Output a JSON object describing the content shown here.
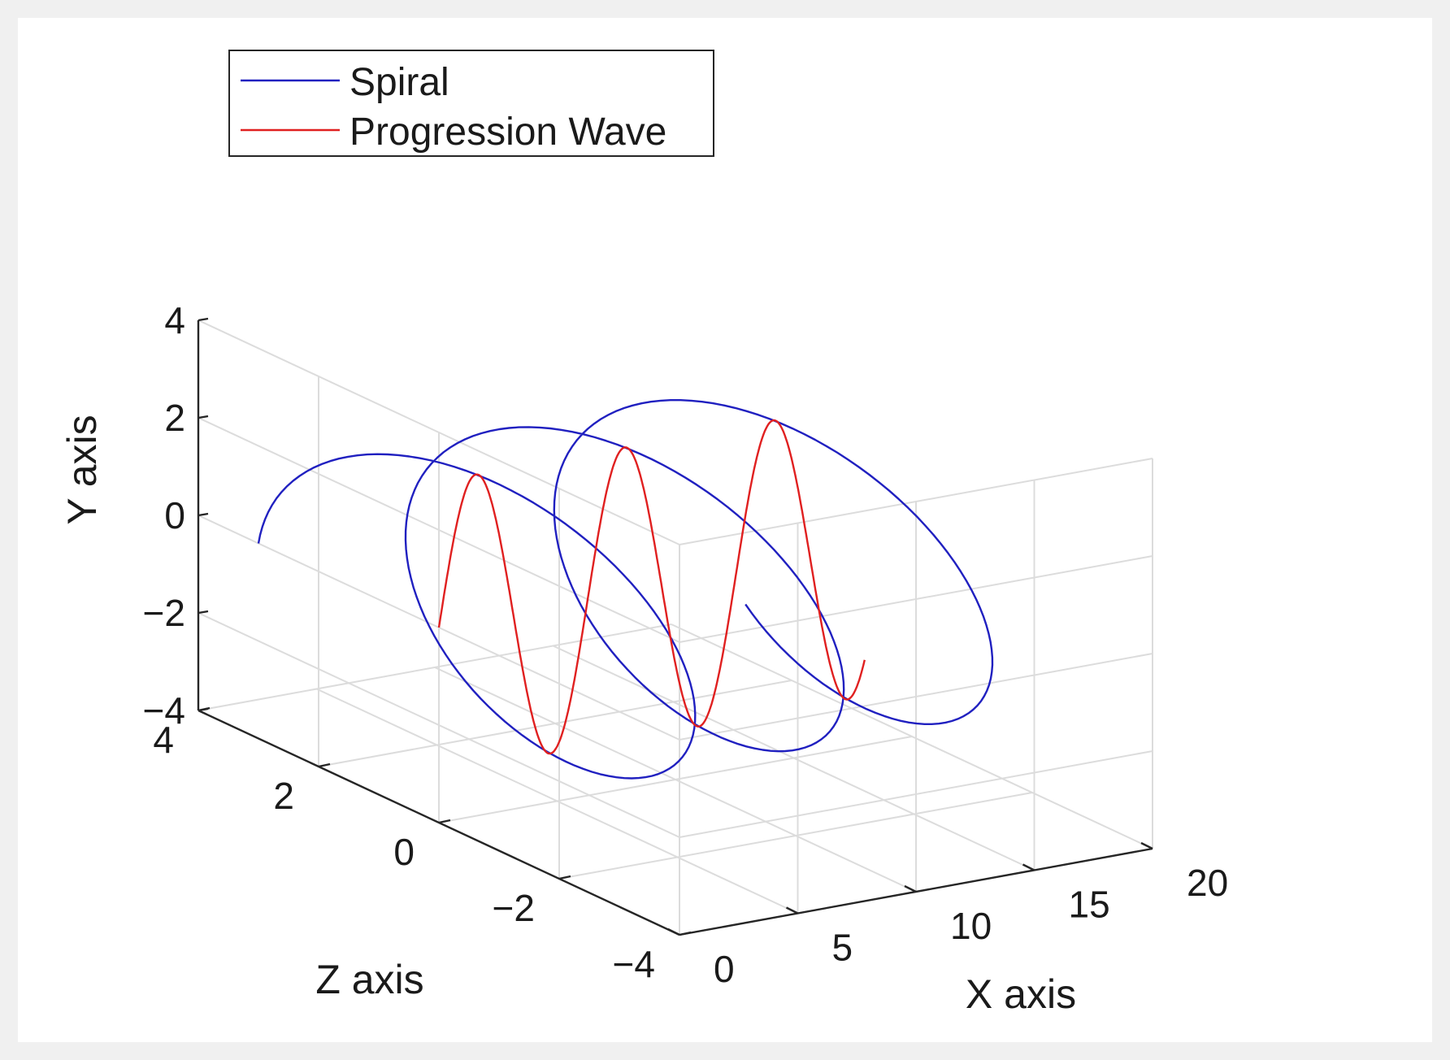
{
  "chart_data": {
    "type": "line",
    "subtype": "3d-line",
    "title": "",
    "xlabel": "X axis",
    "ylabel": "Y axis",
    "zlabel": "Z axis",
    "xlim": [
      0,
      20
    ],
    "ylim": [
      -4,
      4
    ],
    "zlim": [
      -4,
      4
    ],
    "x_ticks": [
      "0",
      "5",
      "10",
      "15",
      "20"
    ],
    "y_ticks": [
      "−4",
      "−2",
      "0",
      "2",
      "4"
    ],
    "z_ticks": [
      "−4",
      "−2",
      "0",
      "2",
      "4"
    ],
    "grid": true,
    "legend_position": "top-left",
    "colors": {
      "background": "#f0f0f0",
      "axes": "#ffffff",
      "grid": "#dcdcdc",
      "axis_line": "#262626"
    },
    "series": [
      {
        "name": "Spiral",
        "color": "#2020c0",
        "x_range": [
          0,
          18
        ],
        "y": "3*sin(x)",
        "z": "3*cos(x)",
        "points": 320
      },
      {
        "name": "Progression Wave",
        "color": "#e02020",
        "x_range": [
          0,
          18
        ],
        "y": "3*sin(x)",
        "z": "0",
        "points": 320
      }
    ]
  }
}
